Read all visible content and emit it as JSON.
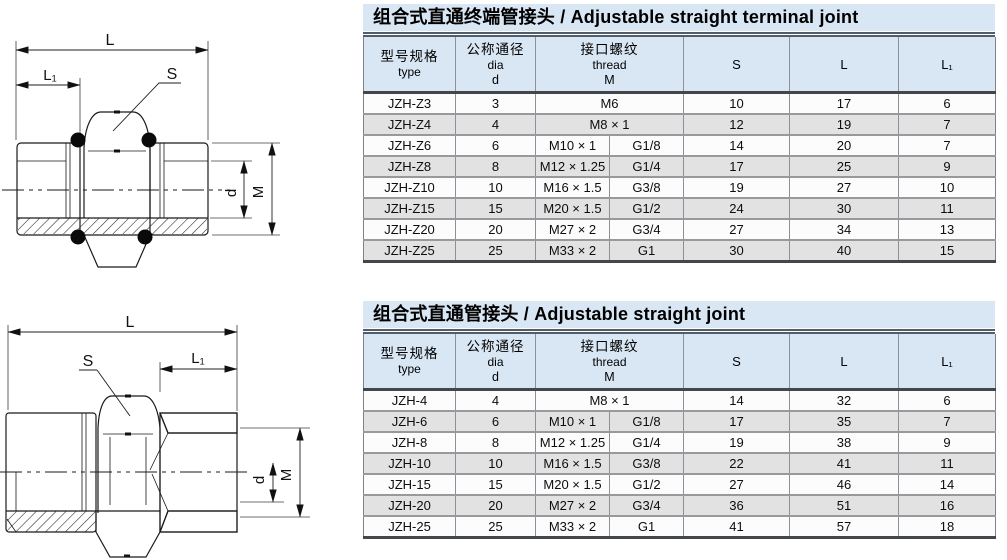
{
  "page": {
    "background": "#ffffff"
  },
  "colors": {
    "title_bg": "#d9e7f4",
    "header_bg": "#d9e7f4",
    "row_bg": "#fcfcfc",
    "row_alt_bg": "#e2e2e2",
    "rule_dark": "#515d68",
    "border_dark": "#43474c",
    "border_gray": "#97999c",
    "drawing_line": "#1a1a1a"
  },
  "tables": [
    {
      "title": "组合式直通终端管接头 / Adjustable straight terminal joint",
      "columns": {
        "type": {
          "zh": "型号规格",
          "en": "type"
        },
        "dia": {
          "zh": "公称通径",
          "en": "dia",
          "sym": "d"
        },
        "thread": {
          "zh": "接口螺纹",
          "en": "thread",
          "sym": "M"
        },
        "s": "S",
        "l": "L",
        "l1": "L₁"
      },
      "rows": [
        {
          "type": "JZH-Z3",
          "dia": "3",
          "thread_m": "M6",
          "thread_g": "",
          "s": "10",
          "l": "17",
          "l1": "6"
        },
        {
          "type": "JZH-Z4",
          "dia": "4",
          "thread_m": "M8 × 1",
          "thread_g": "",
          "s": "12",
          "l": "19",
          "l1": "7"
        },
        {
          "type": "JZH-Z6",
          "dia": "6",
          "thread_m": "M10 × 1",
          "thread_g": "G1/8",
          "s": "14",
          "l": "20",
          "l1": "7"
        },
        {
          "type": "JZH-Z8",
          "dia": "8",
          "thread_m": "M12 × 1.25",
          "thread_g": "G1/4",
          "s": "17",
          "l": "25",
          "l1": "9"
        },
        {
          "type": "JZH-Z10",
          "dia": "10",
          "thread_m": "M16 × 1.5",
          "thread_g": "G3/8",
          "s": "19",
          "l": "27",
          "l1": "10"
        },
        {
          "type": "JZH-Z15",
          "dia": "15",
          "thread_m": "M20 × 1.5",
          "thread_g": "G1/2",
          "s": "24",
          "l": "30",
          "l1": "11"
        },
        {
          "type": "JZH-Z20",
          "dia": "20",
          "thread_m": "M27 × 2",
          "thread_g": "G3/4",
          "s": "27",
          "l": "34",
          "l1": "13"
        },
        {
          "type": "JZH-Z25",
          "dia": "25",
          "thread_m": "M33 × 2",
          "thread_g": "G1",
          "s": "30",
          "l": "40",
          "l1": "15"
        }
      ]
    },
    {
      "title": "组合式直通管接头 / Adjustable straight joint",
      "columns": {
        "type": {
          "zh": "型号规格",
          "en": "type"
        },
        "dia": {
          "zh": "公称通径",
          "en": "dia",
          "sym": "d"
        },
        "thread": {
          "zh": "接口螺纹",
          "en": "thread",
          "sym": "M"
        },
        "s": "S",
        "l": "L",
        "l1": "L₁"
      },
      "rows": [
        {
          "type": "JZH-4",
          "dia": "4",
          "thread_m": "M8 × 1",
          "thread_g": "",
          "s": "14",
          "l": "32",
          "l1": "6"
        },
        {
          "type": "JZH-6",
          "dia": "6",
          "thread_m": "M10 × 1",
          "thread_g": "G1/8",
          "s": "17",
          "l": "35",
          "l1": "7"
        },
        {
          "type": "JZH-8",
          "dia": "8",
          "thread_m": "M12 × 1.25",
          "thread_g": "G1/4",
          "s": "19",
          "l": "38",
          "l1": "9"
        },
        {
          "type": "JZH-10",
          "dia": "10",
          "thread_m": "M16 × 1.5",
          "thread_g": "G3/8",
          "s": "22",
          "l": "41",
          "l1": "11"
        },
        {
          "type": "JZH-15",
          "dia": "15",
          "thread_m": "M20 × 1.5",
          "thread_g": "G1/2",
          "s": "27",
          "l": "46",
          "l1": "14"
        },
        {
          "type": "JZH-20",
          "dia": "20",
          "thread_m": "M27 × 2",
          "thread_g": "G3/4",
          "s": "36",
          "l": "51",
          "l1": "16"
        },
        {
          "type": "JZH-25",
          "dia": "25",
          "thread_m": "M33 × 2",
          "thread_g": "G1",
          "s": "41",
          "l": "57",
          "l1": "18"
        }
      ]
    }
  ],
  "drawings": {
    "top": {
      "labels": {
        "l": "L",
        "l1": "L₁",
        "s": "S",
        "d": "d",
        "m": "M"
      }
    },
    "bottom": {
      "labels": {
        "l": "L",
        "l1": "L₁",
        "s": "S",
        "d": "d",
        "m": "M"
      }
    }
  }
}
